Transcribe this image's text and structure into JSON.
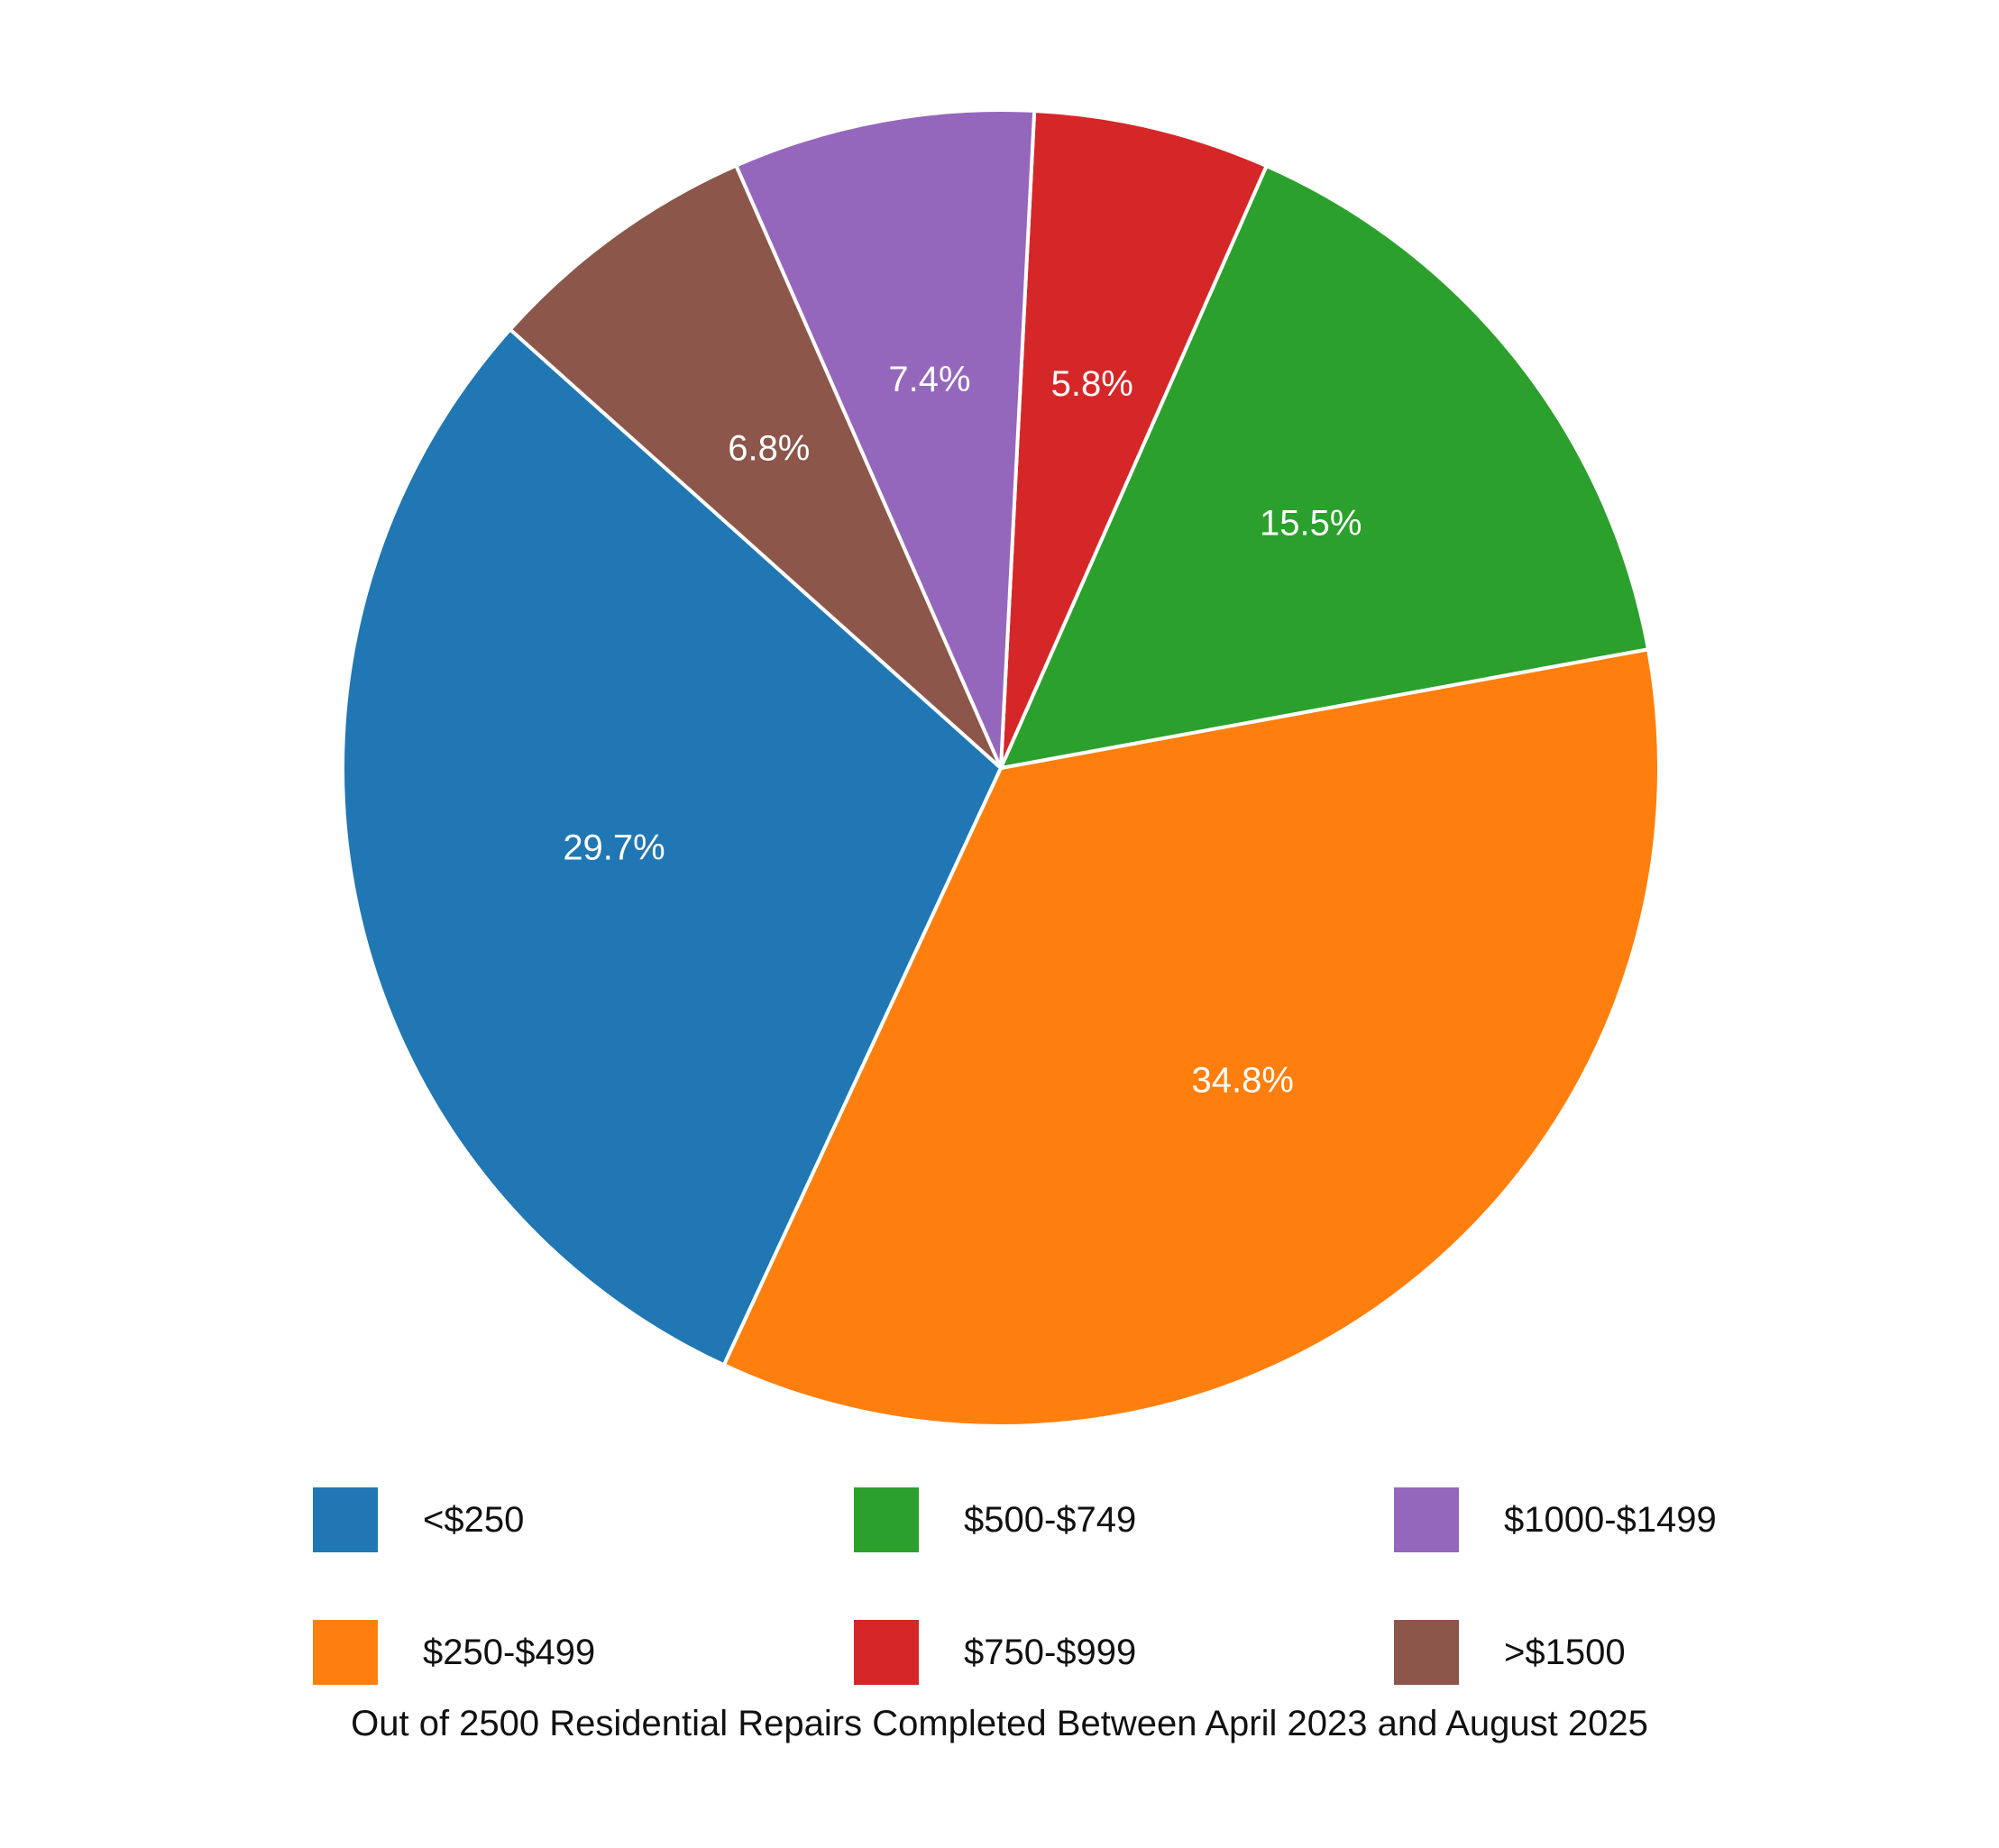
{
  "chart_data": {
    "type": "pie",
    "caption": "Out of 2500 Residential Repairs Completed Between April 2023 and August 2025",
    "slices": [
      {
        "label": "<$250",
        "value": 29.7,
        "value_label": "29.7%",
        "color": "#2077b4"
      },
      {
        "label": "$250-$499",
        "value": 34.8,
        "value_label": "34.8%",
        "color": "#ff7f0e"
      },
      {
        "label": "$500-$749",
        "value": 15.5,
        "value_label": "15.5%",
        "color": "#2ca02c"
      },
      {
        "label": "$750-$999",
        "value": 5.8,
        "value_label": "5.8%",
        "color": "#d62728"
      },
      {
        "label": "$1000-$1499",
        "value": 7.4,
        "value_label": "7.4%",
        "color": "#9467bd"
      },
      {
        "label": ">$1500",
        "value": 6.8,
        "value_label": "6.8%",
        "color": "#8c564b"
      }
    ]
  }
}
